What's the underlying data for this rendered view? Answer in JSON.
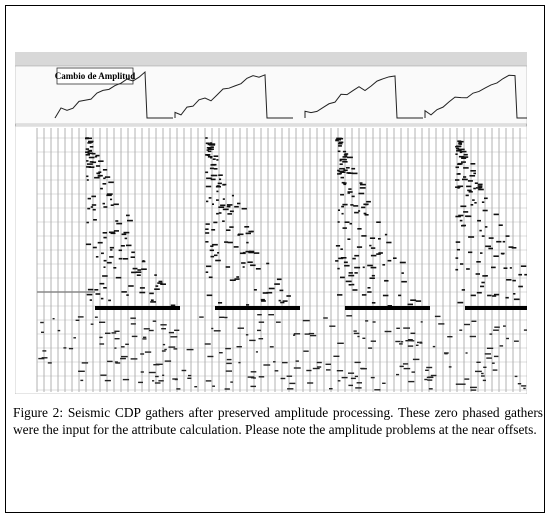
{
  "figure": {
    "panel_label": "Cambio de Amplitud",
    "caption": "Figure 2: Seismic CDP gathers after preserved amplitude processing. These zero phased gathers were the input for the attribute calculation. Please note the amplitude problems at the near offsets."
  }
}
